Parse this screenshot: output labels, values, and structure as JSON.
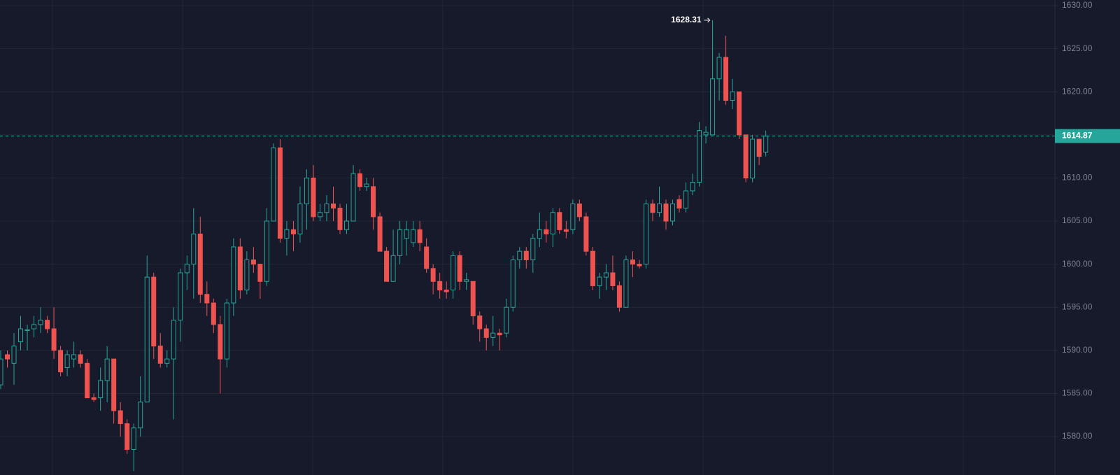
{
  "chart_data": {
    "type": "candlestick",
    "up_color": "#26a69a",
    "down_color": "#ef5350",
    "ylim": [
      1575.54,
      1630.65
    ],
    "yticks": [
      {
        "value": 1630,
        "label": "1630.00"
      },
      {
        "value": 1625,
        "label": "1625.00"
      },
      {
        "value": 1620,
        "label": "1620.00"
      },
      {
        "value": 1615,
        "label": "1615.00"
      },
      {
        "value": 1610,
        "label": "1610.00"
      },
      {
        "value": 1605,
        "label": "1605.00"
      },
      {
        "value": 1600,
        "label": "1600.00"
      },
      {
        "value": 1595,
        "label": "1595.00"
      },
      {
        "value": 1590,
        "label": "1590.00"
      },
      {
        "value": 1585,
        "label": "1585.00"
      },
      {
        "value": 1580,
        "label": "1580.00"
      }
    ],
    "grid": true,
    "last_price": 1614.87,
    "high_marker": 1628.31,
    "open": [
      1586,
      1589.5,
      1588.5,
      1591,
      1592.3,
      1592.5,
      1593,
      1593.5,
      1592.5,
      1590,
      1588,
      1589,
      1589.5,
      1588.5,
      1584.5,
      1584.5,
      1586.5,
      1589,
      1583,
      1581.5,
      1578.5,
      1581,
      1584,
      1598.5,
      1590.5,
      1588.5,
      1589,
      1593.5,
      1599,
      1600,
      1603.5,
      1596.5,
      1595.5,
      1593,
      1589,
      1595.5,
      1602,
      1597,
      1600.5,
      1600,
      1598,
      1605,
      1613.5,
      1603,
      1604,
      1603.5,
      1607,
      1610,
      1605.5,
      1606,
      1607,
      1606.5,
      1604,
      1605,
      1610.5,
      1609,
      1609,
      1605.5,
      1601.5,
      1598,
      1601,
      1603,
      1602.5,
      1604,
      1602,
      1599.5,
      1598,
      1597,
      1597,
      1601,
      1598,
      1598,
      1594,
      1592.5,
      1591.5,
      1592,
      1592,
      1595,
      1600.5,
      1601.5,
      1600.5,
      1603,
      1604,
      1603.5,
      1606,
      1604,
      1604,
      1607,
      1605.5,
      1601.5,
      1597.5,
      1598.5,
      1599,
      1597.5,
      1595,
      1600.5,
      1600,
      1600,
      1607,
      1606,
      1607,
      1605,
      1607.5,
      1606.5,
      1608.5,
      1609.5,
      1615,
      1615,
      1621.5,
      1624,
      1619,
      1620,
      1615,
      1610,
      1614.5,
      1613
    ],
    "high": [
      1590,
      1590,
      1592,
      1594,
      1593,
      1594,
      1595,
      1594,
      1595,
      1590.5,
      1590,
      1591,
      1590,
      1589,
      1585,
      1588,
      1590.5,
      1589,
      1584,
      1582,
      1581.5,
      1587,
      1601,
      1599,
      1592,
      1590,
      1595,
      1599.5,
      1601,
      1606.5,
      1605.5,
      1598,
      1596,
      1594,
      1596,
      1603,
      1603,
      1601.5,
      1602,
      1600,
      1606.5,
      1614,
      1614.5,
      1605,
      1605,
      1609,
      1611,
      1611.5,
      1607,
      1608,
      1609,
      1607,
      1607,
      1611.5,
      1611,
      1610,
      1610,
      1606,
      1602,
      1604,
      1605,
      1605,
      1605,
      1605,
      1603,
      1600,
      1599,
      1598,
      1601.5,
      1601.5,
      1599,
      1598,
      1594.5,
      1593,
      1594,
      1592.5,
      1596,
      1601,
      1602,
      1602,
      1603.5,
      1606,
      1605,
      1606.5,
      1606.5,
      1605,
      1607.5,
      1607.5,
      1606,
      1602,
      1599,
      1600,
      1601,
      1598,
      1601,
      1601.5,
      1600.5,
      1607.5,
      1607.5,
      1609,
      1607.5,
      1607.5,
      1608,
      1609.5,
      1610.5,
      1616.5,
      1616,
      1628.31,
      1624.5,
      1626.5,
      1621.5,
      1620,
      1615,
      1615,
      1614.5,
      1615.5
    ],
    "low": [
      1585.5,
      1588,
      1586,
      1590,
      1590,
      1591.5,
      1592,
      1592,
      1589,
      1587,
      1587,
      1588,
      1588,
      1584.5,
      1584,
      1583,
      1584,
      1581.5,
      1580,
      1578,
      1576,
      1580,
      1584,
      1589,
      1588,
      1588,
      1582,
      1591,
      1597,
      1596,
      1595.5,
      1594,
      1592,
      1585,
      1588,
      1594,
      1596,
      1596.5,
      1599,
      1596,
      1597.5,
      1605,
      1602.5,
      1601,
      1601.5,
      1602.5,
      1604,
      1605,
      1605,
      1605,
      1605,
      1603.5,
      1603.5,
      1605,
      1608.5,
      1608.5,
      1604,
      1601.5,
      1598,
      1598,
      1600,
      1601,
      1602,
      1601.5,
      1599,
      1596.5,
      1596,
      1596,
      1596,
      1597,
      1597,
      1593,
      1591,
      1590,
      1590.5,
      1590,
      1591.5,
      1594.5,
      1599.5,
      1599.5,
      1599,
      1602,
      1602.5,
      1602,
      1603.5,
      1603,
      1603.5,
      1605,
      1601,
      1597,
      1596,
      1597,
      1597,
      1594.5,
      1595,
      1598.5,
      1599.5,
      1599.5,
      1605,
      1605.5,
      1604,
      1604.5,
      1606,
      1606,
      1608,
      1609,
      1614,
      1615,
      1619,
      1618.5,
      1618,
      1614.5,
      1609.5,
      1609.5,
      1611.5,
      1612.5
    ],
    "close": [
      1589,
      1589,
      1590.5,
      1592.5,
      1592.4,
      1593,
      1593.5,
      1592.5,
      1590,
      1587.5,
      1589.5,
      1589.5,
      1588.5,
      1584.5,
      1584.3,
      1586.5,
      1589,
      1583,
      1581.5,
      1578.5,
      1581,
      1584,
      1598.5,
      1590.5,
      1588.5,
      1589,
      1593.5,
      1599,
      1600,
      1603.5,
      1596.5,
      1595.5,
      1593,
      1589,
      1595.5,
      1602,
      1597,
      1600.5,
      1600,
      1598,
      1605,
      1613.5,
      1603,
      1604,
      1603.5,
      1607,
      1610,
      1605.5,
      1606,
      1607,
      1606.5,
      1604,
      1605,
      1610.5,
      1609,
      1609.3,
      1605.5,
      1601.5,
      1598,
      1601,
      1604,
      1604,
      1604,
      1602.5,
      1599.5,
      1598,
      1597,
      1596.8,
      1601,
      1598,
      1598.2,
      1594,
      1592.5,
      1591.5,
      1592,
      1591.8,
      1595,
      1600.5,
      1601.5,
      1600.5,
      1603,
      1604,
      1603.5,
      1606,
      1604,
      1603.8,
      1607,
      1605.5,
      1601.5,
      1597.5,
      1598.5,
      1599,
      1597.5,
      1595,
      1600.5,
      1600,
      1599.8,
      1607,
      1606,
      1607,
      1605,
      1607,
      1606.5,
      1608.5,
      1609.5,
      1615.5,
      1615.3,
      1621.5,
      1624,
      1619,
      1620,
      1615,
      1610,
      1614.5,
      1612.5,
      1614.87
    ]
  }
}
